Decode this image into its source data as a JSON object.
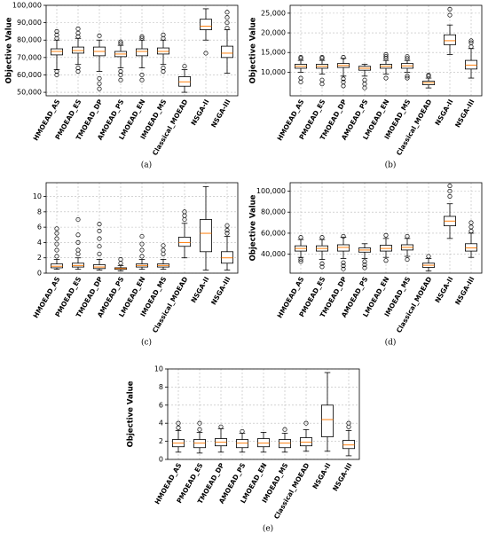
{
  "chart_data": [
    {
      "type": "box",
      "caption": "(a)",
      "ylabel": "Objective Value",
      "color": "#000000",
      "median_color": "#ff7f0e",
      "grid": true,
      "categories": [
        "HMOEAD_AS",
        "PMOEAD_ES",
        "TMOEAD_DP",
        "AMOEAD_PS",
        "LMOEAD_EN",
        "IMOEAD_MS",
        "Classical_MOEAD",
        "NSGA-II",
        "NSGA-III"
      ],
      "ylim": [
        48000,
        100000
      ],
      "yticks": [
        {
          "value": 50000,
          "label": "50,000"
        },
        {
          "value": 60000,
          "label": "60,000"
        },
        {
          "value": 70000,
          "label": "70,000"
        },
        {
          "value": 80000,
          "label": "80,000"
        },
        {
          "value": 90000,
          "label": "90,000"
        },
        {
          "value": 100000,
          "label": "100,000"
        }
      ],
      "boxes": [
        {
          "whislo": 63000,
          "q1": 71500,
          "med": 73500,
          "q3": 75000,
          "whishi": 80000,
          "fliers": [
            60000,
            62000,
            81000,
            83000,
            85000
          ]
        },
        {
          "whislo": 66000,
          "q1": 72500,
          "med": 74000,
          "q3": 76000,
          "whishi": 81000,
          "fliers": [
            62000,
            64000,
            82000,
            84000,
            86500
          ]
        },
        {
          "whislo": 62000,
          "q1": 71000,
          "med": 73500,
          "q3": 76000,
          "whishi": 80000,
          "fliers": [
            52000,
            55000,
            58000,
            82500
          ]
        },
        {
          "whislo": 64000,
          "q1": 70500,
          "med": 72000,
          "q3": 73500,
          "whishi": 77000,
          "fliers": [
            57000,
            60000,
            62000,
            78000,
            79000
          ]
        },
        {
          "whislo": 64000,
          "q1": 71000,
          "med": 73500,
          "q3": 75000,
          "whishi": 80000,
          "fliers": [
            57000,
            60000,
            81000,
            82000
          ]
        },
        {
          "whislo": 66000,
          "q1": 72000,
          "med": 73500,
          "q3": 75500,
          "whishi": 80000,
          "fliers": [
            62000,
            64000,
            81000,
            83000
          ]
        },
        {
          "whislo": 50000,
          "q1": 53500,
          "med": 56000,
          "q3": 59000,
          "whishi": 63000,
          "fliers": [
            65000
          ]
        },
        {
          "whislo": 80000,
          "q1": 86000,
          "med": 88000,
          "q3": 92000,
          "whishi": 98000,
          "fliers": [
            72500
          ]
        },
        {
          "whislo": 61000,
          "q1": 70000,
          "med": 72500,
          "q3": 76500,
          "whishi": 86000,
          "fliers": [
            87000,
            90000,
            93000,
            96000
          ]
        }
      ]
    },
    {
      "type": "box",
      "caption": "(b)",
      "ylabel": "Objective Value",
      "color": "#000000",
      "median_color": "#ff7f0e",
      "grid": true,
      "categories": [
        "HMOEAD_AS",
        "PMOEAD_ES",
        "TMOEAD_DP",
        "AMOEAD_PS",
        "LMOEAD_EN",
        "IMOEAD_MS",
        "Classical_MOEAD",
        "NSGA-II",
        "NSGA-III"
      ],
      "ylim": [
        4000,
        27000
      ],
      "yticks": [
        {
          "value": 10000,
          "label": "10,000"
        },
        {
          "value": 15000,
          "label": "15,000"
        },
        {
          "value": 20000,
          "label": "20,000"
        },
        {
          "value": 25000,
          "label": "25,000"
        }
      ],
      "boxes": [
        {
          "whislo": 10000,
          "q1": 11000,
          "med": 11500,
          "q3": 12000,
          "whishi": 13000,
          "fliers": [
            7500,
            8500,
            13500,
            13800
          ]
        },
        {
          "whislo": 9500,
          "q1": 11000,
          "med": 11500,
          "q3": 12000,
          "whishi": 13000,
          "fliers": [
            7000,
            8000,
            13500,
            13800
          ]
        },
        {
          "whislo": 9000,
          "q1": 11200,
          "med": 11700,
          "q3": 12200,
          "whishi": 13500,
          "fliers": [
            6500,
            7500,
            8300,
            13800
          ]
        },
        {
          "whislo": 9000,
          "q1": 10500,
          "med": 11000,
          "q3": 11500,
          "whishi": 12000,
          "fliers": [
            6000,
            7000,
            8000
          ]
        },
        {
          "whislo": 9500,
          "q1": 11000,
          "med": 11500,
          "q3": 12000,
          "whishi": 13000,
          "fliers": [
            8500,
            13500,
            14000,
            14500
          ]
        },
        {
          "whislo": 10000,
          "q1": 11000,
          "med": 11600,
          "q3": 12200,
          "whishi": 13000,
          "fliers": [
            8500,
            9000,
            13500,
            14000
          ]
        },
        {
          "whislo": 6000,
          "q1": 6800,
          "med": 7300,
          "q3": 7700,
          "whishi": 8500,
          "fliers": [
            9000,
            9300
          ]
        },
        {
          "whislo": 14500,
          "q1": 17000,
          "med": 18000,
          "q3": 19500,
          "whishi": 22000,
          "fliers": [
            24500,
            26000
          ]
        },
        {
          "whislo": 8500,
          "q1": 10800,
          "med": 11800,
          "q3": 13000,
          "whishi": 16000,
          "fliers": [
            16500,
            17500,
            18000
          ]
        }
      ]
    },
    {
      "type": "box",
      "caption": "(c)",
      "color": "#000000",
      "median_color": "#ff7f0e",
      "grid": true,
      "categories": [
        "HMOEAD_AS",
        "PMOEAD_ES",
        "TMOEAD_DP",
        "AMOEAD_PS",
        "LMOEAD_EN",
        "IMOEAD_MS",
        "Classical_MOEAD",
        "NSGA-II",
        "NSGA-III"
      ],
      "ylim": [
        0,
        11.8
      ],
      "yticks": [
        0,
        2,
        4,
        6,
        8,
        10
      ],
      "boxes": [
        {
          "whislo": 0.5,
          "q1": 0.7,
          "med": 0.9,
          "q3": 1.2,
          "whishi": 1.8,
          "fliers": [
            2.2,
            3,
            3.8,
            4.5,
            5.2,
            5.8
          ]
        },
        {
          "whislo": 0.5,
          "q1": 0.8,
          "med": 1,
          "q3": 1.3,
          "whishi": 2,
          "fliers": [
            2.5,
            3,
            4,
            5,
            7
          ]
        },
        {
          "whislo": 0.4,
          "q1": 0.6,
          "med": 0.8,
          "q3": 1.1,
          "whishi": 1.8,
          "fliers": [
            2.5,
            3.5,
            4.5,
            5.5,
            6.4
          ]
        },
        {
          "whislo": 0.3,
          "q1": 0.5,
          "med": 0.6,
          "q3": 0.7,
          "whishi": 1,
          "fliers": [
            1.3,
            1.8
          ]
        },
        {
          "whislo": 0.5,
          "q1": 0.8,
          "med": 1,
          "q3": 1.2,
          "whishi": 1.8,
          "fliers": [
            2.2,
            3,
            3.8,
            4.8
          ]
        },
        {
          "whislo": 0.5,
          "q1": 0.8,
          "med": 1,
          "q3": 1.2,
          "whishi": 1.8,
          "fliers": [
            2.5,
            3,
            3.6
          ]
        },
        {
          "whislo": 2,
          "q1": 3.5,
          "med": 4,
          "q3": 4.7,
          "whishi": 6.5,
          "fliers": [
            7,
            7.5,
            8
          ]
        },
        {
          "whislo": 0.4,
          "q1": 2.8,
          "med": 5.2,
          "q3": 7,
          "whishi": 11.3,
          "fliers": []
        },
        {
          "whislo": 0.4,
          "q1": 1.3,
          "med": 2,
          "q3": 2.8,
          "whishi": 4.8,
          "fliers": [
            5.2,
            5.6,
            6.2
          ]
        }
      ]
    },
    {
      "type": "box",
      "caption": "(d)",
      "ylabel": "Objective Value",
      "color": "#000000",
      "median_color": "#ff7f0e",
      "grid": true,
      "categories": [
        "HMOEAD_AS",
        "PMOEAD_ES",
        "TMOEAD_DP",
        "AMOEAD_PS",
        "LMOEAD_EN",
        "IMOEAD_MS",
        "Classical_MOEAD",
        "NSGA-II",
        "NSGA-III"
      ],
      "ylim": [
        22000,
        108000
      ],
      "yticks": [
        {
          "value": 40000,
          "label": "40,000"
        },
        {
          "value": 60000,
          "label": "60,000"
        },
        {
          "value": 80000,
          "label": "80,000"
        },
        {
          "value": 100000,
          "label": "100,000"
        }
      ],
      "boxes": [
        {
          "whislo": 37000,
          "q1": 43000,
          "med": 45500,
          "q3": 48000,
          "whishi": 54000,
          "fliers": [
            33000,
            35000,
            56000
          ]
        },
        {
          "whislo": 35000,
          "q1": 43000,
          "med": 45500,
          "q3": 48000,
          "whishi": 54000,
          "fliers": [
            28000,
            31000,
            56000
          ]
        },
        {
          "whislo": 36000,
          "q1": 43000,
          "med": 46500,
          "q3": 49000,
          "whishi": 56000,
          "fliers": [
            26000,
            29000,
            32000,
            57000
          ]
        },
        {
          "whislo": 36000,
          "q1": 42000,
          "med": 44000,
          "q3": 46000,
          "whishi": 50000,
          "fliers": [
            27000,
            30000,
            33000
          ]
        },
        {
          "whislo": 37000,
          "q1": 43000,
          "med": 45500,
          "q3": 48500,
          "whishi": 55000,
          "fliers": [
            34000,
            58000
          ]
        },
        {
          "whislo": 38000,
          "q1": 44000,
          "med": 46500,
          "q3": 49000,
          "whishi": 55000,
          "fliers": [
            35000,
            57000
          ]
        },
        {
          "whislo": 24000,
          "q1": 27500,
          "med": 29500,
          "q3": 31500,
          "whishi": 36000,
          "fliers": [
            38000
          ]
        },
        {
          "whislo": 55000,
          "q1": 67000,
          "med": 71500,
          "q3": 76000,
          "whishi": 88000,
          "fliers": [
            95000,
            100000,
            105000
          ]
        },
        {
          "whislo": 37000,
          "q1": 43000,
          "med": 46000,
          "q3": 50000,
          "whishi": 60000,
          "fliers": [
            62000,
            66000,
            70000
          ]
        }
      ]
    },
    {
      "type": "box",
      "caption": "(e)",
      "ylabel": "Objective Value",
      "color": "#000000",
      "median_color": "#ff7f0e",
      "grid": true,
      "categories": [
        "HMOEAD_AS",
        "PMOEAD_ES",
        "TMOEAD_DP",
        "AMOEAD_PS",
        "LMOEAD_EN",
        "IMOEAD_MS",
        "Classical_MOEAD",
        "NSGA-II",
        "NSGA-III"
      ],
      "ylim": [
        0,
        10
      ],
      "yticks": [
        0,
        2,
        4,
        6,
        8,
        10
      ],
      "boxes": [
        {
          "whislo": 0.8,
          "q1": 1.4,
          "med": 1.8,
          "q3": 2.2,
          "whishi": 3.2,
          "fliers": [
            3.5,
            4
          ]
        },
        {
          "whislo": 0.7,
          "q1": 1.3,
          "med": 1.8,
          "q3": 2.2,
          "whishi": 3,
          "fliers": [
            3.3,
            4
          ]
        },
        {
          "whislo": 0.8,
          "q1": 1.5,
          "med": 1.9,
          "q3": 2.3,
          "whishi": 3.4,
          "fliers": [
            3.6
          ]
        },
        {
          "whislo": 0.8,
          "q1": 1.3,
          "med": 1.8,
          "q3": 2.2,
          "whishi": 2.9,
          "fliers": [
            3.1
          ]
        },
        {
          "whislo": 0.8,
          "q1": 1.4,
          "med": 1.8,
          "q3": 2.3,
          "whishi": 3,
          "fliers": []
        },
        {
          "whislo": 0.8,
          "q1": 1.3,
          "med": 1.8,
          "q3": 2.2,
          "whishi": 2.9,
          "fliers": [
            3.3
          ]
        },
        {
          "whislo": 0.9,
          "q1": 1.5,
          "med": 1.9,
          "q3": 2.4,
          "whishi": 3.3,
          "fliers": [
            4
          ]
        },
        {
          "whislo": 0.9,
          "q1": 2.5,
          "med": 4.4,
          "q3": 6,
          "whishi": 9.6,
          "fliers": []
        },
        {
          "whislo": 0.4,
          "q1": 1.2,
          "med": 1.6,
          "q3": 2.1,
          "whishi": 3.2,
          "fliers": [
            3.6,
            4
          ]
        }
      ]
    }
  ]
}
